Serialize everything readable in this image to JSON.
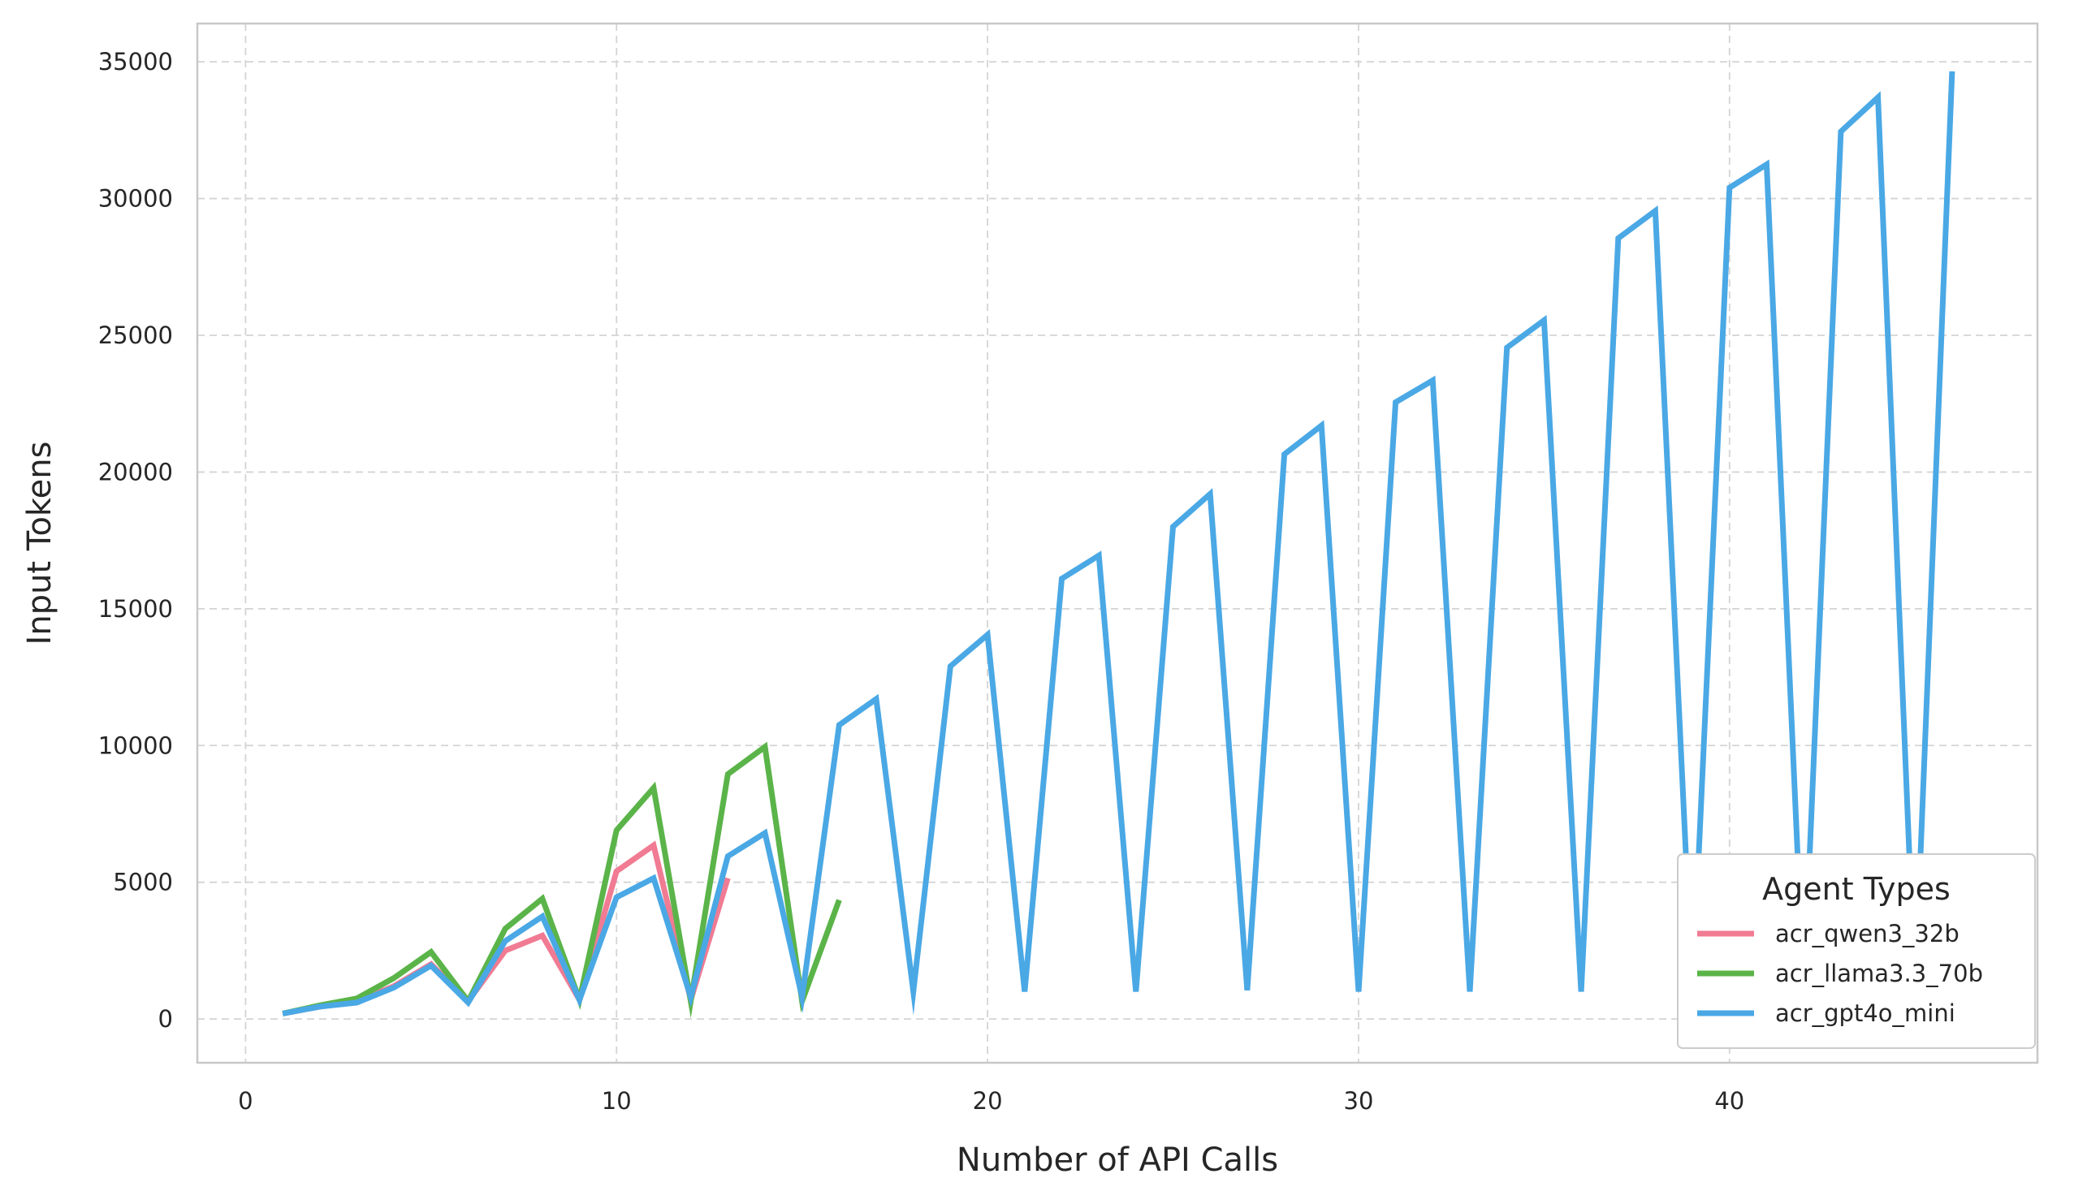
{
  "chart_data": {
    "type": "line",
    "title": "",
    "xlabel": "Number of API Calls",
    "ylabel": "Input Tokens",
    "xlim": [
      -1.3,
      48.3
    ],
    "ylim": [
      -1600,
      36400
    ],
    "xticks": [
      0,
      10,
      20,
      30,
      40
    ],
    "yticks": [
      0,
      5000,
      10000,
      15000,
      20000,
      25000,
      30000,
      35000
    ],
    "grid": true,
    "legend": {
      "title": "Agent Types",
      "placement": "bottom-right"
    },
    "series": [
      {
        "name": "acr_qwen3_32b",
        "color": "#f07b93",
        "x": [
          1,
          2,
          3,
          4,
          5,
          6,
          7,
          8,
          9,
          10,
          11,
          12,
          13
        ],
        "y": [
          200,
          450,
          650,
          1200,
          2000,
          650,
          2500,
          3050,
          700,
          5400,
          6350,
          700,
          5150
        ]
      },
      {
        "name": "acr_llama3.3_70b",
        "color": "#5bb449",
        "x": [
          1,
          2,
          3,
          4,
          5,
          6,
          7,
          8,
          9,
          10,
          11,
          12,
          13,
          14,
          15,
          16
        ],
        "y": [
          200,
          500,
          750,
          1500,
          2450,
          650,
          3300,
          4400,
          700,
          6900,
          8450,
          650,
          8950,
          9950,
          650,
          4350
        ]
      },
      {
        "name": "acr_gpt4o_mini",
        "color": "#4aa8e5",
        "x": [
          1,
          2,
          3,
          4,
          5,
          6,
          7,
          8,
          9,
          10,
          11,
          12,
          13,
          14,
          15,
          16,
          17,
          18,
          19,
          20,
          21,
          22,
          23,
          24,
          25,
          26,
          27,
          28,
          29,
          30,
          31,
          32,
          33,
          34,
          35,
          36,
          37,
          38,
          39,
          40,
          41,
          42,
          43,
          44,
          45,
          46
        ],
        "y": [
          200,
          450,
          600,
          1150,
          1950,
          600,
          2850,
          3750,
          700,
          4450,
          5150,
          800,
          5950,
          6800,
          800,
          10750,
          11700,
          1000,
          12900,
          14050,
          1000,
          16100,
          16950,
          1000,
          18000,
          19200,
          1050,
          20650,
          21700,
          1000,
          22550,
          23350,
          1000,
          24550,
          25550,
          1000,
          28550,
          29550,
          1000,
          30400,
          31250,
          1000,
          32450,
          33700,
          1000,
          34650
        ]
      }
    ]
  }
}
